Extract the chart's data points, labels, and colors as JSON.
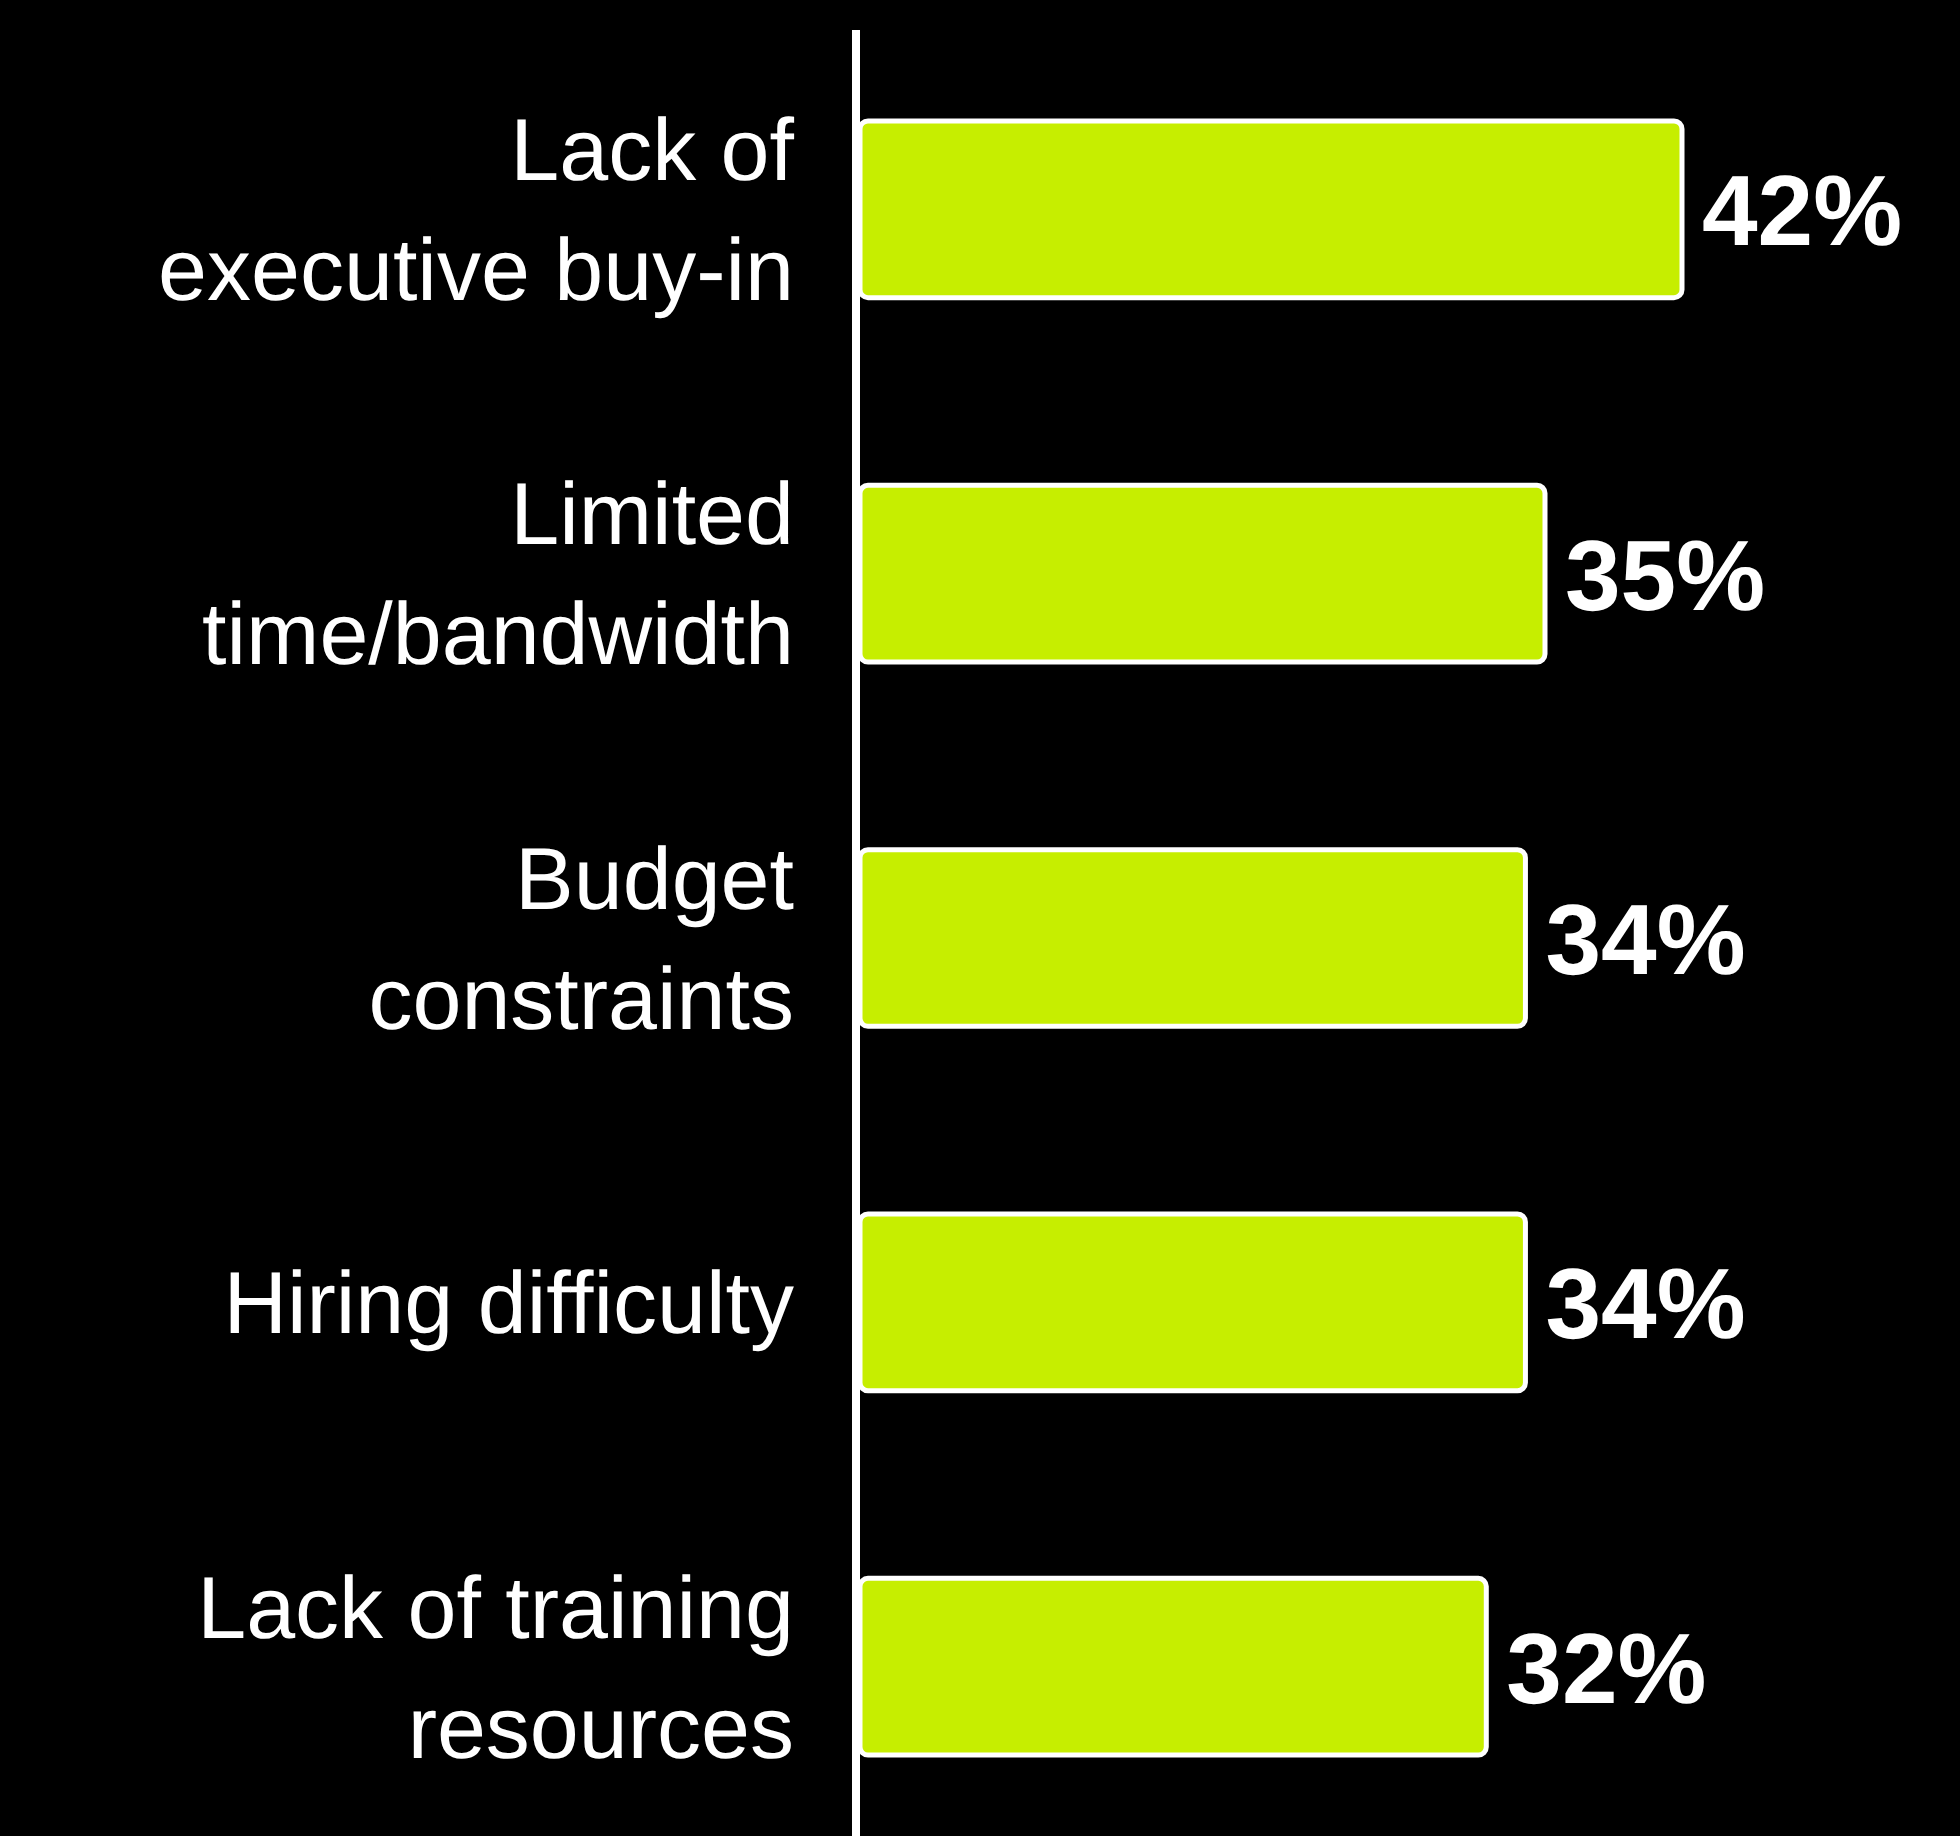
{
  "chart_data": {
    "type": "bar",
    "orientation": "horizontal",
    "categories": [
      "Lack of executive buy-in",
      "Limited time/bandwidth",
      "Budget constraints",
      "Hiring difficulty",
      "Lack of training resources"
    ],
    "values": [
      42,
      35,
      34,
      34,
      32
    ],
    "value_labels": [
      "42%",
      "35%",
      "34%",
      "34%",
      "32%"
    ],
    "color": "#c6ee00"
  }
}
